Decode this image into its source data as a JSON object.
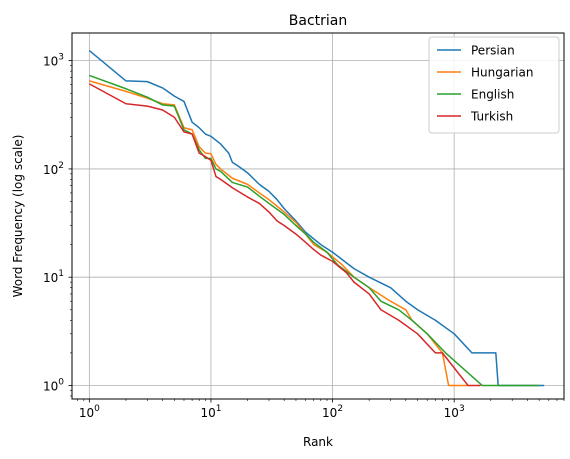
{
  "chart_data": {
    "type": "line",
    "title": "Bactrian",
    "xlabel": "Rank",
    "ylabel": "Word Frequency (log scale)",
    "xscale": "log",
    "yscale": "log",
    "xlim": [
      0.72,
      8000
    ],
    "ylim": [
      0.75,
      1800
    ],
    "grid": true,
    "legend_position": "top-right",
    "x_ticks": [
      {
        "value": 1,
        "base": "10",
        "exp": "0"
      },
      {
        "value": 10,
        "base": "10",
        "exp": "1"
      },
      {
        "value": 100,
        "base": "10",
        "exp": "2"
      },
      {
        "value": 1000,
        "base": "10",
        "exp": "3"
      }
    ],
    "y_ticks": [
      {
        "value": 1,
        "base": "10",
        "exp": "0"
      },
      {
        "value": 10,
        "base": "10",
        "exp": "1"
      },
      {
        "value": 100,
        "base": "10",
        "exp": "2"
      },
      {
        "value": 1000,
        "base": "10",
        "exp": "3"
      }
    ],
    "series": [
      {
        "name": "Persian",
        "color": "#1f77b4",
        "points": [
          [
            1,
            1240
          ],
          [
            2,
            650
          ],
          [
            3,
            640
          ],
          [
            4,
            560
          ],
          [
            5,
            470
          ],
          [
            6,
            420
          ],
          [
            7,
            270
          ],
          [
            8,
            240
          ],
          [
            9,
            210
          ],
          [
            10,
            200
          ],
          [
            12,
            170
          ],
          [
            14,
            140
          ],
          [
            15,
            115
          ],
          [
            17,
            105
          ],
          [
            20,
            92
          ],
          [
            25,
            72
          ],
          [
            30,
            62
          ],
          [
            35,
            52
          ],
          [
            40,
            43
          ],
          [
            50,
            33
          ],
          [
            60,
            26
          ],
          [
            80,
            20
          ],
          [
            100,
            17
          ],
          [
            150,
            12
          ],
          [
            200,
            10
          ],
          [
            300,
            8
          ],
          [
            400,
            6
          ],
          [
            500,
            5
          ],
          [
            700,
            4
          ],
          [
            1000,
            3
          ],
          [
            1400,
            2
          ],
          [
            2200,
            2
          ],
          [
            2300,
            1
          ],
          [
            5500,
            1
          ]
        ]
      },
      {
        "name": "Hungarian",
        "color": "#ff7f0e",
        "points": [
          [
            1,
            650
          ],
          [
            2,
            520
          ],
          [
            3,
            450
          ],
          [
            4,
            400
          ],
          [
            5,
            390
          ],
          [
            6,
            240
          ],
          [
            7,
            230
          ],
          [
            8,
            160
          ],
          [
            9,
            140
          ],
          [
            10,
            138
          ],
          [
            11,
            110
          ],
          [
            12,
            100
          ],
          [
            15,
            82
          ],
          [
            20,
            72
          ],
          [
            25,
            60
          ],
          [
            30,
            52
          ],
          [
            40,
            40
          ],
          [
            50,
            32
          ],
          [
            60,
            25
          ],
          [
            70,
            20
          ],
          [
            90,
            17
          ],
          [
            120,
            13
          ],
          [
            150,
            10
          ],
          [
            200,
            8
          ],
          [
            300,
            6
          ],
          [
            400,
            5
          ],
          [
            450,
            4
          ],
          [
            600,
            3
          ],
          [
            800,
            2
          ],
          [
            900,
            1
          ],
          [
            1300,
            1
          ]
        ]
      },
      {
        "name": "English",
        "color": "#2ca02c",
        "points": [
          [
            1,
            730
          ],
          [
            2,
            550
          ],
          [
            3,
            460
          ],
          [
            4,
            390
          ],
          [
            5,
            380
          ],
          [
            6,
            230
          ],
          [
            7,
            210
          ],
          [
            8,
            150
          ],
          [
            9,
            125
          ],
          [
            10,
            125
          ],
          [
            11,
            100
          ],
          [
            12,
            95
          ],
          [
            15,
            75
          ],
          [
            20,
            68
          ],
          [
            25,
            56
          ],
          [
            30,
            48
          ],
          [
            40,
            38
          ],
          [
            50,
            30
          ],
          [
            60,
            25
          ],
          [
            70,
            21
          ],
          [
            90,
            17
          ],
          [
            110,
            13
          ],
          [
            150,
            10
          ],
          [
            200,
            8
          ],
          [
            250,
            6
          ],
          [
            350,
            5
          ],
          [
            450,
            4
          ],
          [
            600,
            3
          ],
          [
            850,
            2
          ],
          [
            1700,
            1
          ],
          [
            5000,
            1
          ]
        ]
      },
      {
        "name": "Turkish",
        "color": "#d62728",
        "points": [
          [
            1,
            610
          ],
          [
            2,
            400
          ],
          [
            3,
            380
          ],
          [
            4,
            350
          ],
          [
            5,
            300
          ],
          [
            6,
            220
          ],
          [
            7,
            210
          ],
          [
            8,
            140
          ],
          [
            9,
            130
          ],
          [
            10,
            120
          ],
          [
            11,
            85
          ],
          [
            12,
            80
          ],
          [
            15,
            67
          ],
          [
            20,
            55
          ],
          [
            25,
            48
          ],
          [
            30,
            40
          ],
          [
            35,
            33
          ],
          [
            40,
            30
          ],
          [
            50,
            25
          ],
          [
            60,
            21
          ],
          [
            70,
            18
          ],
          [
            80,
            16
          ],
          [
            100,
            14
          ],
          [
            130,
            11
          ],
          [
            150,
            9
          ],
          [
            200,
            7
          ],
          [
            250,
            5
          ],
          [
            350,
            4
          ],
          [
            500,
            3
          ],
          [
            700,
            2
          ],
          [
            800,
            2
          ],
          [
            1300,
            1
          ],
          [
            1650,
            1
          ]
        ]
      }
    ]
  }
}
